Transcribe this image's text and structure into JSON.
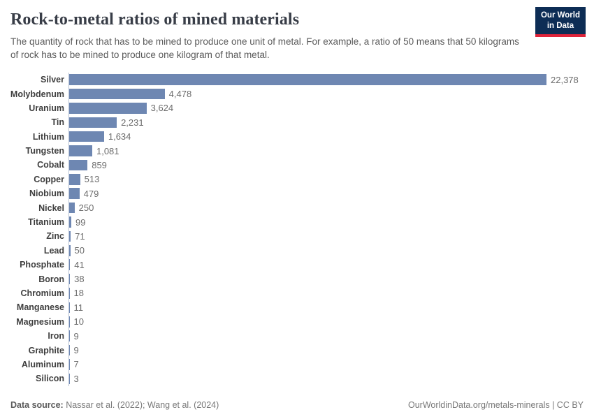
{
  "header": {
    "title": "Rock-to-metal ratios of mined materials",
    "subtitle": "The quantity of rock that has to be mined to produce one unit of metal. For example, a ratio of 50 means that 50 kilograms of rock has to be mined to produce one kilogram of that metal.",
    "logo": {
      "line1": "Our World",
      "line2": "in Data"
    }
  },
  "chart_data": {
    "type": "bar",
    "orientation": "horizontal",
    "title": "Rock-to-metal ratios of mined materials",
    "categories": [
      "Silver",
      "Molybdenum",
      "Uranium",
      "Tin",
      "Lithium",
      "Tungsten",
      "Cobalt",
      "Copper",
      "Niobium",
      "Nickel",
      "Titanium",
      "Zinc",
      "Lead",
      "Phosphate",
      "Boron",
      "Chromium",
      "Manganese",
      "Magnesium",
      "Iron",
      "Graphite",
      "Aluminum",
      "Silicon"
    ],
    "values": [
      22378,
      4478,
      3624,
      2231,
      1634,
      1081,
      859,
      513,
      479,
      250,
      99,
      71,
      50,
      41,
      38,
      18,
      11,
      10,
      9,
      9,
      7,
      3
    ],
    "value_labels": [
      "22,378",
      "4,478",
      "3,624",
      "2,231",
      "1,634",
      "1,081",
      "859",
      "513",
      "479",
      "250",
      "99",
      "71",
      "50",
      "41",
      "38",
      "18",
      "11",
      "10",
      "9",
      "9",
      "7",
      "3"
    ],
    "xlim": [
      0,
      22378
    ],
    "grid": false,
    "legend": "none",
    "bar_color": "#6e87b2",
    "axis_line_color": "#b9c3d6"
  },
  "footer": {
    "source_label": "Data source:",
    "source_text": " Nassar et al. (2022); Wang et al. (2024)",
    "rights": "OurWorldinData.org/metals-minerals | CC BY"
  },
  "colors": {
    "title": "#383d47",
    "subtitle": "#5a5a5a",
    "logo_bg": "#0d2d55",
    "logo_accent": "#e0243a",
    "bar": "#6e87b2"
  }
}
